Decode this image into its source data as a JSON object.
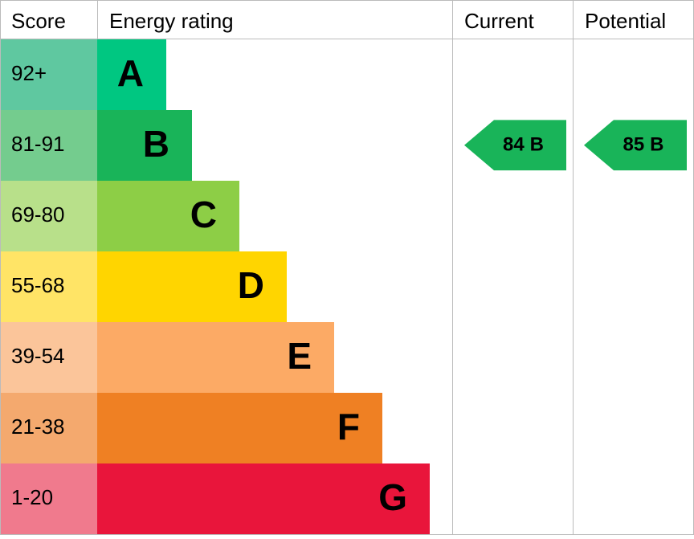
{
  "header": {
    "score": "Score",
    "rating": "Energy rating",
    "current": "Current",
    "potential": "Potential"
  },
  "bands": [
    {
      "range": "92+",
      "letter": "A",
      "color": "#00c781",
      "cell_color": "#5fc8a0"
    },
    {
      "range": "81-91",
      "letter": "B",
      "color": "#19b459",
      "cell_color": "#74cc8e"
    },
    {
      "range": "69-80",
      "letter": "C",
      "color": "#8dce46",
      "cell_color": "#b8e08a"
    },
    {
      "range": "55-68",
      "letter": "D",
      "color": "#ffd500",
      "cell_color": "#ffe466"
    },
    {
      "range": "39-54",
      "letter": "E",
      "color": "#fcaa65",
      "cell_color": "#fbc59a"
    },
    {
      "range": "21-38",
      "letter": "F",
      "color": "#ef8023",
      "cell_color": "#f4a96e"
    },
    {
      "range": "1-20",
      "letter": "G",
      "color": "#e9153b",
      "cell_color": "#f07a8d"
    }
  ],
  "current": {
    "score": 84,
    "rating": "B"
  },
  "potential": {
    "score": 85,
    "rating": "B"
  }
}
